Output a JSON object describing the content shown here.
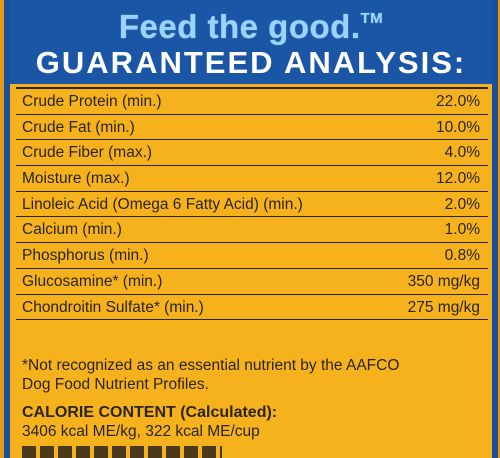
{
  "header": {
    "tagline": "Feed the good.",
    "tagline_mark": "TM",
    "title": "GUARANTEED ANALYSIS:"
  },
  "analysis": [
    {
      "label": "Crude Protein (min.)",
      "value": "22.0%"
    },
    {
      "label": "Crude Fat (min.)",
      "value": "10.0%"
    },
    {
      "label": "Crude Fiber (max.)",
      "value": "4.0%"
    },
    {
      "label": "Moisture (max.)",
      "value": "12.0%"
    },
    {
      "label": "Linoleic Acid (Omega 6 Fatty Acid) (min.)",
      "value": "2.0%"
    },
    {
      "label": "Calcium (min.)",
      "value": "1.0%"
    },
    {
      "label": "Phosphorus (min.)",
      "value": "0.8%"
    },
    {
      "label": "Glucosamine* (min.)",
      "value": "350 mg/kg"
    },
    {
      "label": "Chondroitin Sulfate* (min.)",
      "value": "275 mg/kg"
    }
  ],
  "footnote": {
    "line1": "*Not recognized as an essential nutrient by the AAFCO",
    "line2": "Dog Food Nutrient Profiles."
  },
  "calorie": {
    "title": "CALORIE CONTENT (Calculated):",
    "value": "3406 kcal ME/kg, 322 kcal ME/cup"
  },
  "colors": {
    "header_blue": "#1b56a6",
    "tagline_blue": "#9bd3ff",
    "label_yellow": "#f6b21c",
    "text_dark": "#2b2418"
  }
}
